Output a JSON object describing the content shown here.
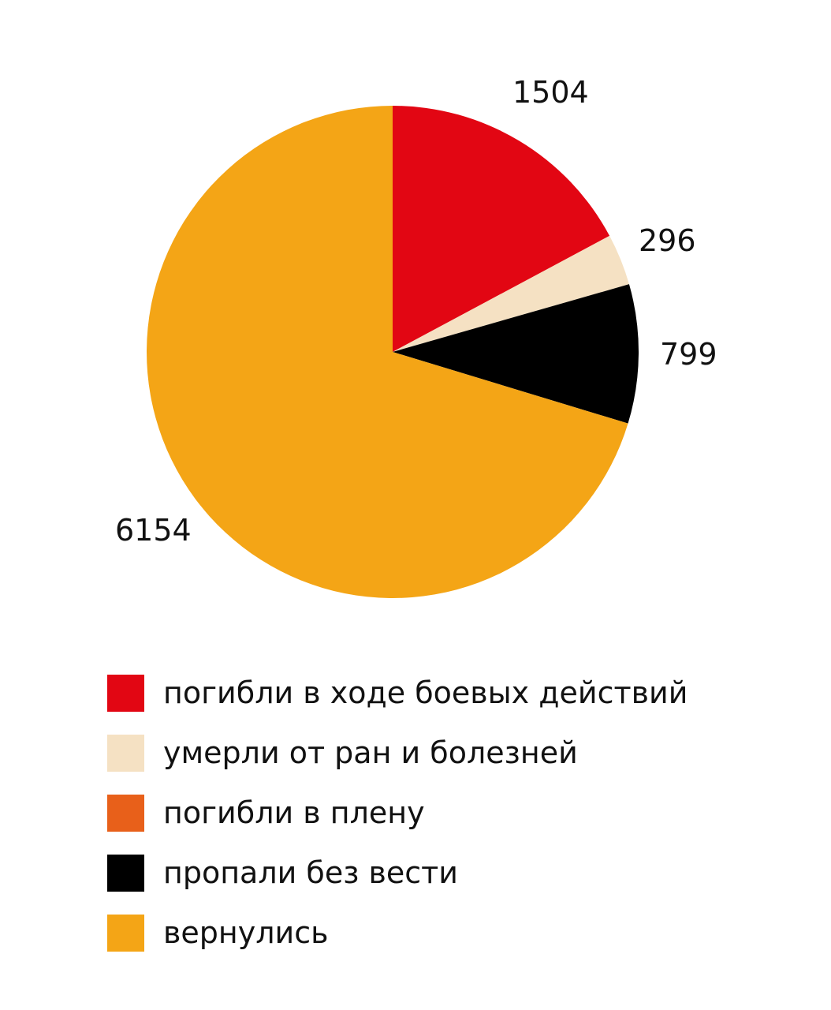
{
  "chart_data": {
    "type": "pie",
    "start_angle_deg": 0,
    "direction": "clockwise",
    "slices": [
      {
        "name": "погибли в ходе боевых действий",
        "value": 1504,
        "label": "1504",
        "color": "#e20613"
      },
      {
        "name": "умерли от ран и болезней",
        "value": 296,
        "label": "296",
        "color": "#f5e1c3"
      },
      {
        "name": "погибли в плену",
        "value": 0,
        "label": "",
        "color": "#e8601a"
      },
      {
        "name": "пропали без вести",
        "value": 799,
        "label": "799",
        "color": "#000000"
      },
      {
        "name": "вернулись",
        "value": 6154,
        "label": "6154",
        "color": "#f4a516"
      }
    ],
    "legend": {
      "placement": "bottom",
      "entries": [
        {
          "label": "погибли в ходе боевых действий",
          "color": "#e20613"
        },
        {
          "label": "умерли от ран и болезней",
          "color": "#f5e1c3"
        },
        {
          "label": "погибли в плену",
          "color": "#e8601a"
        },
        {
          "label": "пропали без вести",
          "color": "#000000"
        },
        {
          "label": "вернулись",
          "color": "#f4a516"
        }
      ]
    }
  }
}
